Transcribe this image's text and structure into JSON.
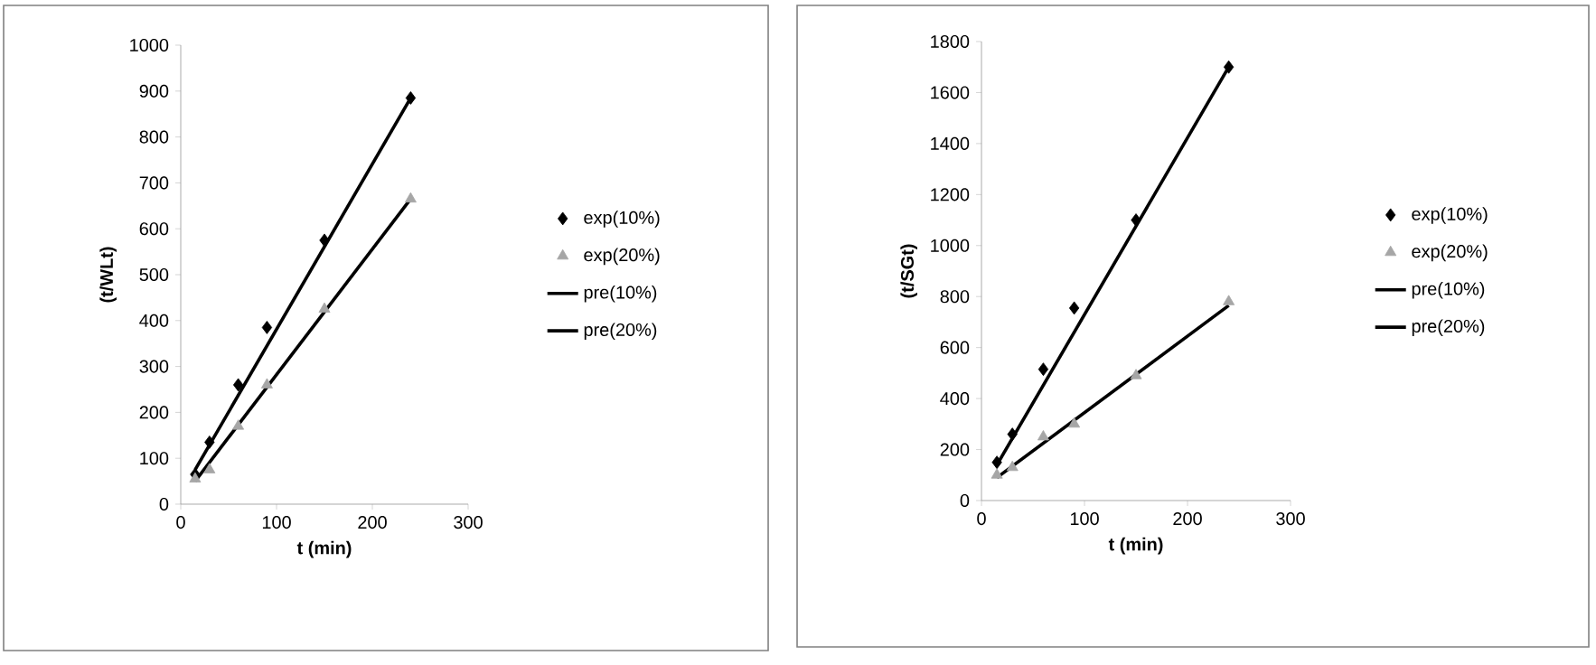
{
  "chart_data": [
    {
      "type": "scatter",
      "xlabel": "t (min)",
      "ylabel": "(t/WLt)",
      "xlim": [
        0,
        300
      ],
      "xticks": [
        0,
        100,
        200,
        300
      ],
      "ylim": [
        0,
        1000
      ],
      "yticks": [
        0,
        100,
        200,
        300,
        400,
        500,
        600,
        700,
        800,
        900,
        1000
      ],
      "legend": "right",
      "grid": false,
      "series": [
        {
          "name": "exp(10%)",
          "marker": "diamond",
          "color": "#000000",
          "x": [
            15,
            30,
            60,
            90,
            150,
            240
          ],
          "values": [
            65,
            135,
            260,
            385,
            575,
            885
          ]
        },
        {
          "name": "exp(20%)",
          "marker": "triangle",
          "color": "#a6a6a6",
          "x": [
            15,
            30,
            60,
            90,
            150,
            240
          ],
          "values": [
            55,
            75,
            170,
            260,
            425,
            665
          ]
        },
        {
          "name": "pre(10%)",
          "type": "line",
          "marker": "none",
          "color": "#000000",
          "x": [
            15,
            240
          ],
          "values": [
            75,
            885
          ]
        },
        {
          "name": "pre(20%)",
          "type": "line",
          "marker": "none",
          "color": "#000000",
          "x": [
            15,
            240
          ],
          "values": [
            50,
            665
          ]
        }
      ]
    },
    {
      "type": "scatter",
      "xlabel": "t (min)",
      "ylabel": "(t/SGt)",
      "xlim": [
        0,
        300
      ],
      "xticks": [
        0,
        100,
        200,
        300
      ],
      "ylim": [
        0,
        1800
      ],
      "yticks": [
        0,
        200,
        400,
        600,
        800,
        1000,
        1200,
        1400,
        1600,
        1800
      ],
      "legend": "right",
      "grid": false,
      "series": [
        {
          "name": "exp(10%)",
          "marker": "diamond",
          "color": "#000000",
          "x": [
            15,
            30,
            60,
            90,
            150,
            240
          ],
          "values": [
            150,
            260,
            515,
            755,
            1100,
            1700
          ]
        },
        {
          "name": "exp(20%)",
          "marker": "triangle",
          "color": "#a6a6a6",
          "x": [
            15,
            30,
            60,
            90,
            150,
            240
          ],
          "values": [
            100,
            130,
            250,
            300,
            490,
            780
          ]
        },
        {
          "name": "pre(10%)",
          "type": "line",
          "marker": "none",
          "color": "#000000",
          "x": [
            15,
            240
          ],
          "values": [
            140,
            1700
          ]
        },
        {
          "name": "pre(20%)",
          "type": "line",
          "marker": "none",
          "color": "#000000",
          "x": [
            15,
            240
          ],
          "values": [
            90,
            765
          ]
        }
      ]
    }
  ]
}
